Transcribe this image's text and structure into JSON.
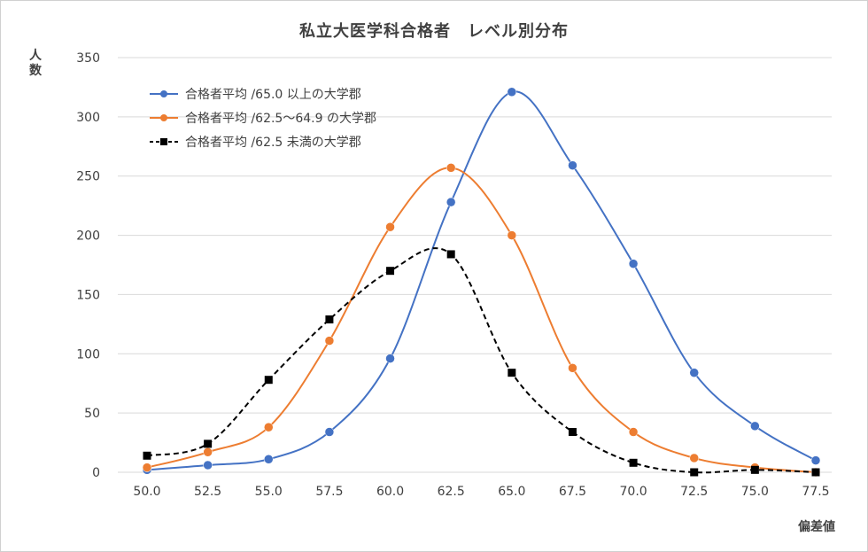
{
  "chart_data": {
    "type": "line",
    "title": "私立大医学科合格者　レベル別分布",
    "ylabel": "人数",
    "xlabel": "偏差値",
    "ylim": [
      0,
      350
    ],
    "xlim": [
      50.0,
      77.5
    ],
    "y_ticks": [
      "0",
      "50",
      "100",
      "150",
      "200",
      "250",
      "300",
      "350"
    ],
    "x_ticks": [
      "50.0",
      "52.5",
      "55.0",
      "57.5",
      "60.0",
      "62.5",
      "65.0",
      "67.5",
      "70.0",
      "72.5",
      "75.0",
      "77.5"
    ],
    "x": [
      50.0,
      52.5,
      55.0,
      57.5,
      60.0,
      62.5,
      65.0,
      67.5,
      70.0,
      72.5,
      75.0,
      77.5
    ],
    "grid": "horizontal",
    "legend_position": "top-left",
    "series": [
      {
        "name": "合格者平均 /65.0 以上の大学郡",
        "color": "#4472c4",
        "marker": "circle",
        "dash": "solid",
        "values": [
          2,
          6,
          11,
          34,
          96,
          228,
          321,
          259,
          176,
          84,
          39,
          10
        ]
      },
      {
        "name": "合格者平均 /62.5～64.9 の大学郡",
        "color": "#ed7d31",
        "marker": "circle",
        "dash": "solid",
        "values": [
          4,
          17,
          38,
          111,
          207,
          257,
          200,
          88,
          34,
          12,
          4,
          0
        ]
      },
      {
        "name": "合格者平均 /62.5 未満の大学郡",
        "color": "#000000",
        "marker": "square",
        "dash": "dashed",
        "values": [
          14,
          24,
          78,
          129,
          170,
          184,
          84,
          34,
          8,
          0,
          2,
          0
        ]
      }
    ]
  }
}
